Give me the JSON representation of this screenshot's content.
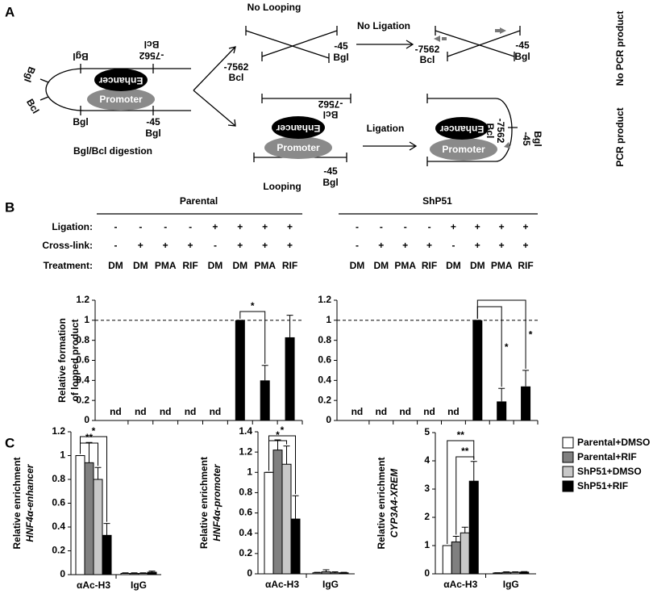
{
  "panel_labels": [
    "A",
    "B",
    "C"
  ],
  "panel_a": {
    "no_looping": "No Looping",
    "no_ligation": "No Ligation",
    "no_pcr": "No PCR product",
    "ligation": "Ligation",
    "looping": "Looping",
    "pcr": "PCR  product",
    "digestion": "Bgl/Bcl digestion",
    "enhancer": "Enhancer",
    "promoter": "Promoter",
    "site_7562": "-7562",
    "site_45": "-45",
    "bcl": "Bcl",
    "bgl": "Bgl"
  },
  "chart_data": [
    {
      "type": "bar",
      "title": "Parental",
      "row_labels": [
        "Ligation:",
        "Cross-link:",
        "Treatment:"
      ],
      "ligation": [
        "-",
        "-",
        "-",
        "-",
        "+",
        "+",
        "+",
        "+"
      ],
      "crosslink": [
        "-",
        "+",
        "+",
        "+",
        "-",
        "+",
        "+",
        "+"
      ],
      "categories": [
        "DM",
        "DM",
        "PMA",
        "RIF",
        "DM",
        "DM",
        "PMA",
        "RIF"
      ],
      "values": [
        null,
        null,
        null,
        null,
        null,
        1,
        0.4,
        0.83
      ],
      "value_labels": [
        "nd",
        "nd",
        "nd",
        "nd",
        "nd",
        null,
        null,
        null
      ],
      "errors": [
        null,
        null,
        null,
        null,
        null,
        0,
        0.15,
        0.22
      ],
      "color": "#000000",
      "ylabel": [
        "Relative formation",
        "of lopped product"
      ],
      "ylim": [
        0,
        1.2
      ],
      "yticks": [
        0,
        0.2,
        0.4,
        0.6,
        0.8,
        1,
        1.2
      ],
      "reference_line": 1,
      "annotations": [
        "*"
      ]
    },
    {
      "type": "bar",
      "title": "ShP51",
      "ligation": [
        "-",
        "-",
        "-",
        "-",
        "+",
        "+",
        "+",
        "+"
      ],
      "crosslink": [
        "-",
        "+",
        "+",
        "+",
        "-",
        "+",
        "+",
        "+"
      ],
      "categories": [
        "DM",
        "DM",
        "PMA",
        "RIF",
        "DM",
        "DM",
        "PMA",
        "RIF"
      ],
      "values": [
        null,
        null,
        null,
        null,
        null,
        1,
        0.19,
        0.34
      ],
      "value_labels": [
        "nd",
        "nd",
        "nd",
        "nd",
        "nd",
        null,
        null,
        null
      ],
      "errors": [
        null,
        null,
        null,
        null,
        null,
        0,
        0.13,
        0.16
      ],
      "color": "#000000",
      "ylim": [
        0,
        1.2
      ],
      "yticks": [
        0,
        0.2,
        0.4,
        0.6,
        0.8,
        1,
        1.2
      ],
      "reference_line": 1,
      "annotations": [
        "*",
        "*"
      ]
    },
    {
      "type": "grouped_bar",
      "categories": [
        "αAc-H3",
        "IgG"
      ],
      "ylabel": [
        "Relative enrichment",
        "HNF4α-enhancer"
      ],
      "ylim": [
        0,
        1.2
      ],
      "yticks": [
        0,
        0.2,
        0.4,
        0.6,
        0.8,
        1,
        1.2
      ],
      "series": [
        {
          "color": "#ffffff",
          "values": [
            1,
            0.01
          ],
          "errors": [
            0,
            0.005
          ]
        },
        {
          "color": "#808080",
          "values": [
            0.94,
            0.01
          ],
          "errors": [
            0.17,
            0.005
          ]
        },
        {
          "color": "#c8c8c8",
          "values": [
            0.8,
            0.01
          ],
          "errors": [
            0.1,
            0.005
          ]
        },
        {
          "color": "#000000",
          "values": [
            0.33,
            0.02
          ],
          "errors": [
            0.1,
            0.01
          ]
        }
      ],
      "annotations": [
        "**",
        "*"
      ]
    },
    {
      "type": "grouped_bar",
      "categories": [
        "αAc-H3",
        "IgG"
      ],
      "ylabel": [
        "Relative enrichment",
        "HNF4α-promoter"
      ],
      "ylim": [
        0,
        1.4
      ],
      "yticks": [
        0,
        0.2,
        0.4,
        0.6,
        0.8,
        1,
        1.2,
        1.4
      ],
      "series": [
        {
          "color": "#ffffff",
          "values": [
            1,
            0.01
          ],
          "errors": [
            0,
            0.005
          ]
        },
        {
          "color": "#808080",
          "values": [
            1.22,
            0.02
          ],
          "errors": [
            0.1,
            0.02
          ]
        },
        {
          "color": "#c8c8c8",
          "values": [
            1.08,
            0.01
          ],
          "errors": [
            0.18,
            0.01
          ]
        },
        {
          "color": "#000000",
          "values": [
            0.54,
            0.01
          ],
          "errors": [
            0.23,
            0.005
          ]
        }
      ],
      "annotations": [
        "*",
        "*"
      ]
    },
    {
      "type": "grouped_bar",
      "categories": [
        "αAc-H3",
        "IgG"
      ],
      "ylabel": [
        "Relative enrichment",
        "CYP3A4-XREM"
      ],
      "ylim": [
        0,
        5
      ],
      "yticks": [
        0,
        1,
        2,
        3,
        4,
        5
      ],
      "series": [
        {
          "name": "Parental+DMSO",
          "color": "#ffffff",
          "values": [
            1,
            0.03
          ],
          "errors": [
            0,
            0.01
          ]
        },
        {
          "name": "Parental+RIF",
          "color": "#808080",
          "values": [
            1.13,
            0.05
          ],
          "errors": [
            0.2,
            0.02
          ]
        },
        {
          "name": "ShP51+DMSO",
          "color": "#c8c8c8",
          "values": [
            1.45,
            0.05
          ],
          "errors": [
            0.2,
            0.02
          ]
        },
        {
          "name": "ShP51+RIF",
          "color": "#000000",
          "values": [
            3.28,
            0.06
          ],
          "errors": [
            0.7,
            0.02
          ]
        }
      ],
      "annotations": [
        "**",
        "**"
      ]
    }
  ]
}
